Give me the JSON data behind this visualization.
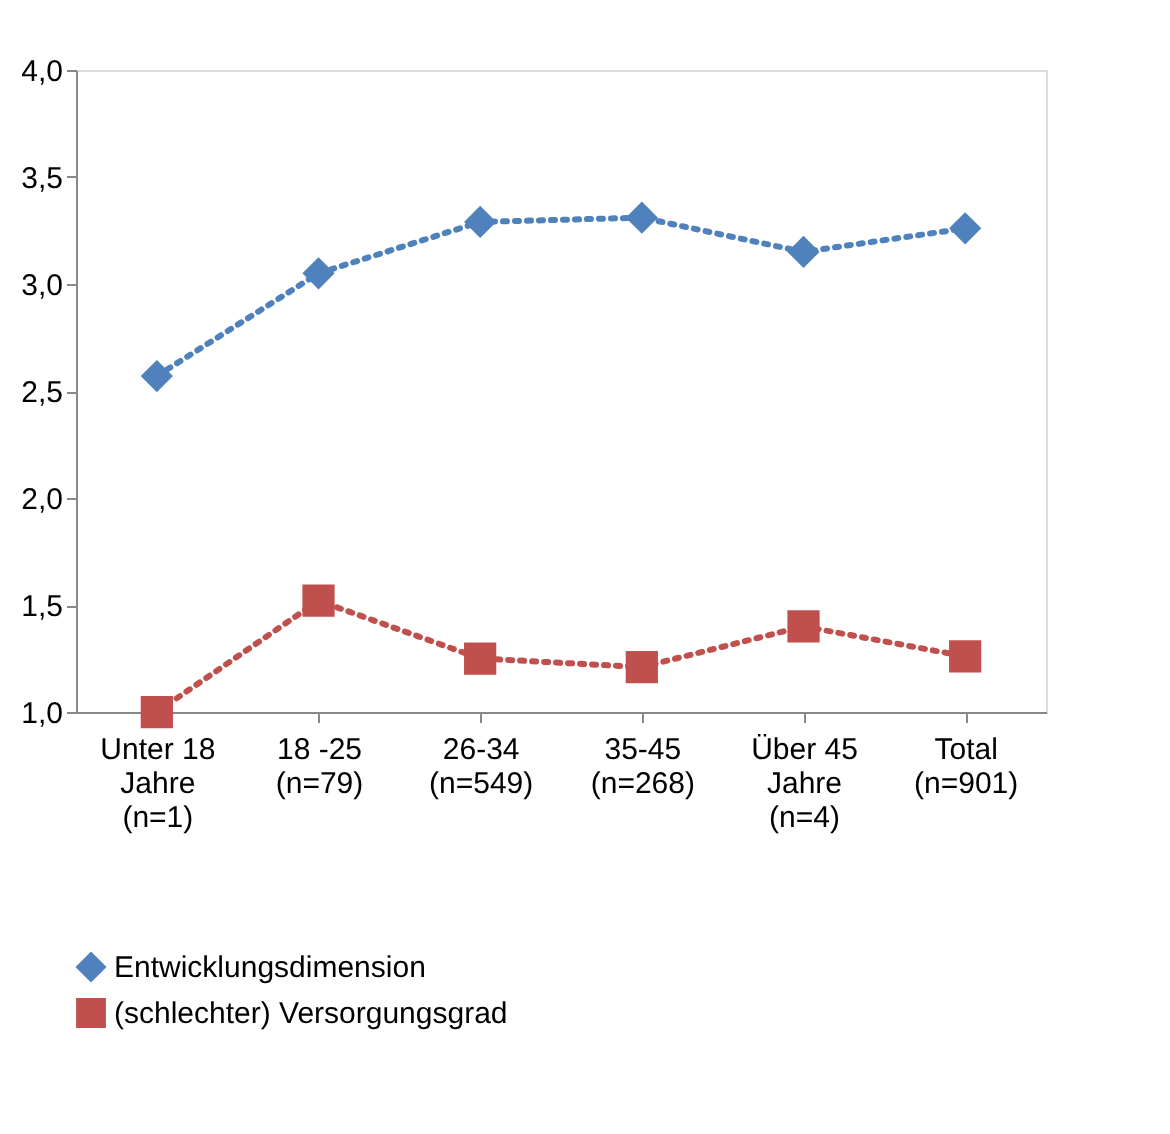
{
  "chart_data": {
    "type": "line",
    "categories": [
      "Unter 18\nJahre\n(n=1)",
      "18 -25\n(n=79)",
      "26-34\n(n=549)",
      "35-45\n(n=268)",
      "Über 45\nJahre\n(n=4)",
      "Total\n(n=901)"
    ],
    "series": [
      {
        "name": "Entwicklungsdimension",
        "color": "#4f81bd",
        "marker": "diamond",
        "values": [
          2.57,
          3.05,
          3.29,
          3.31,
          3.15,
          3.26
        ]
      },
      {
        "name": "(schlechter) Versorgungsgrad",
        "color": "#c0504d",
        "marker": "square",
        "values": [
          1.0,
          1.52,
          1.25,
          1.21,
          1.4,
          1.26
        ]
      }
    ],
    "ylim": [
      1.0,
      4.0
    ],
    "yticks": [
      {
        "value": 1.0,
        "label": "1,0"
      },
      {
        "value": 1.5,
        "label": "1,5"
      },
      {
        "value": 2.0,
        "label": "2,0"
      },
      {
        "value": 2.5,
        "label": "2,5"
      },
      {
        "value": 3.0,
        "label": "3,0"
      },
      {
        "value": 3.5,
        "label": "3,5"
      },
      {
        "value": 4.0,
        "label": "4,0"
      }
    ],
    "line_style": "dotted",
    "grid": false,
    "legend": "bottom"
  }
}
